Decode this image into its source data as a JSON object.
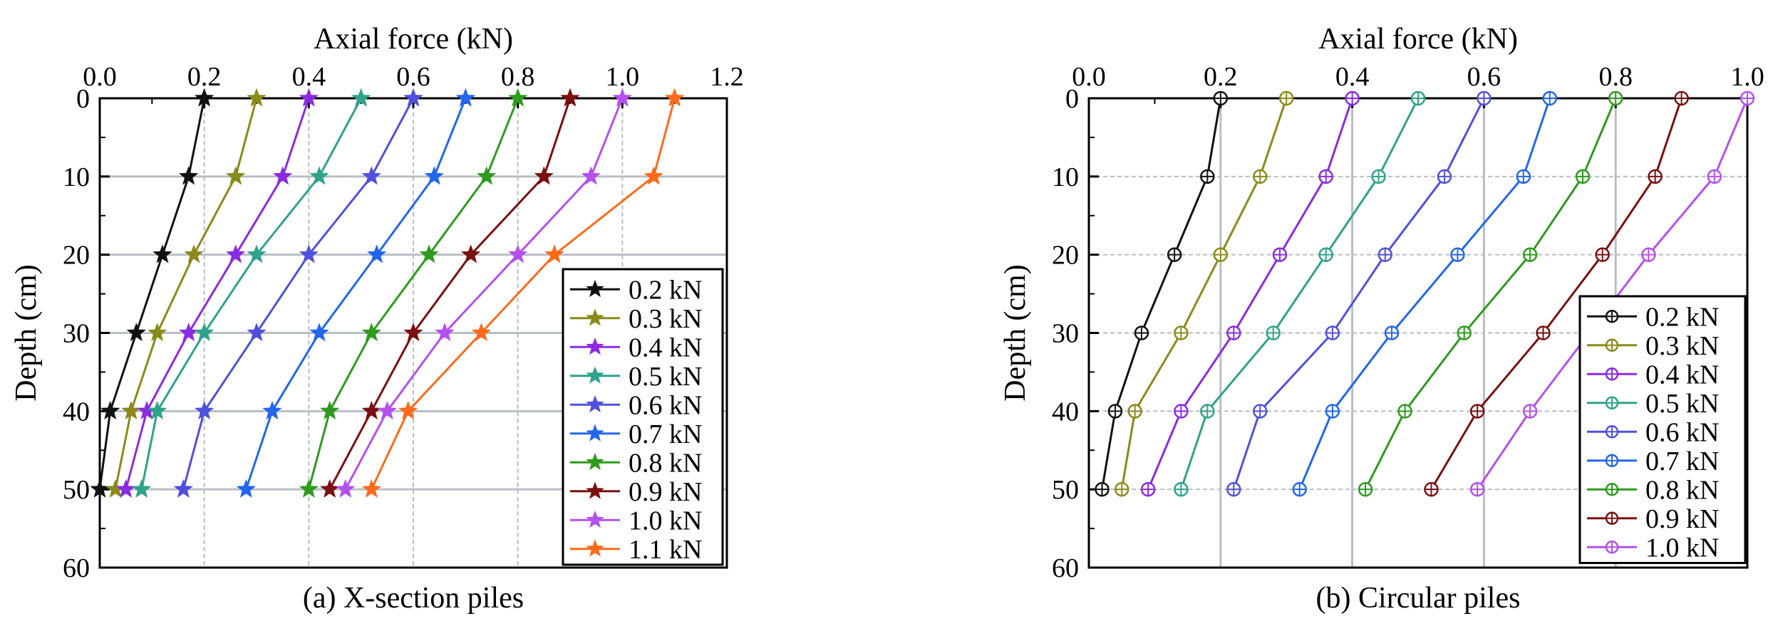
{
  "chart_data": [
    {
      "type": "line",
      "panel_caption": "(a) X-section piles",
      "xlabel": "Axial force (kN)",
      "ylabel": "Depth (cm)",
      "xlim": [
        0,
        1.2
      ],
      "ylim": [
        0,
        60
      ],
      "x_ticks": [
        "0.0",
        "0.2",
        "0.4",
        "0.6",
        "0.8",
        "1.0",
        "1.2"
      ],
      "y_ticks": [
        "0",
        "10",
        "20",
        "30",
        "40",
        "50",
        "60"
      ],
      "y_inverted": true,
      "grid": "vertical dashed at 0.2/0.4/0.6/0.8/1.0, horizontal solid at 10-50",
      "legend_position": "lower-right",
      "marker": "star",
      "depths": [
        0,
        10,
        20,
        30,
        40,
        50
      ],
      "series": [
        {
          "name": "0.2 kN",
          "color": "#111111",
          "values": [
            0.2,
            0.17,
            0.12,
            0.07,
            0.02,
            0.0
          ]
        },
        {
          "name": "0.3 kN",
          "color": "#8a8a1a",
          "values": [
            0.3,
            0.26,
            0.18,
            0.11,
            0.06,
            0.03
          ]
        },
        {
          "name": "0.4 kN",
          "color": "#8a2be2",
          "values": [
            0.4,
            0.35,
            0.26,
            0.17,
            0.09,
            0.05
          ]
        },
        {
          "name": "0.5 kN",
          "color": "#2ea28a",
          "values": [
            0.5,
            0.42,
            0.3,
            0.2,
            0.11,
            0.08
          ]
        },
        {
          "name": "0.6 kN",
          "color": "#5050dc",
          "values": [
            0.6,
            0.52,
            0.4,
            0.3,
            0.2,
            0.16
          ]
        },
        {
          "name": "0.7 kN",
          "color": "#2266ee",
          "values": [
            0.7,
            0.64,
            0.53,
            0.42,
            0.33,
            0.28
          ]
        },
        {
          "name": "0.8 kN",
          "color": "#2e9a1e",
          "values": [
            0.8,
            0.74,
            0.63,
            0.52,
            0.44,
            0.4
          ]
        },
        {
          "name": "0.9 kN",
          "color": "#7a1010",
          "values": [
            0.9,
            0.85,
            0.71,
            0.6,
            0.52,
            0.44
          ]
        },
        {
          "name": "1.0 kN",
          "color": "#b450f0",
          "values": [
            1.0,
            0.94,
            0.8,
            0.66,
            0.55,
            0.47
          ]
        },
        {
          "name": "1.1 kN",
          "color": "#ff6a1a",
          "values": [
            1.1,
            1.06,
            0.87,
            0.73,
            0.59,
            0.52
          ]
        }
      ]
    },
    {
      "type": "line",
      "panel_caption": "(b) Circular piles",
      "xlabel": "Axial force (kN)",
      "ylabel": "Depth (cm)",
      "xlim": [
        0,
        1.0
      ],
      "ylim": [
        0,
        60
      ],
      "x_ticks": [
        "0.0",
        "0.2",
        "0.4",
        "0.6",
        "0.8",
        "1.0"
      ],
      "y_ticks": [
        "0",
        "10",
        "20",
        "30",
        "40",
        "50",
        "60"
      ],
      "y_inverted": true,
      "grid": "vertical solid at 0.2/0.4/0.6/0.8, horizontal dashed at 10-50",
      "legend_position": "lower-right",
      "marker": "circle-plus",
      "depths": [
        0,
        10,
        20,
        30,
        40,
        50
      ],
      "series": [
        {
          "name": "0.2 kN",
          "color": "#111111",
          "values": [
            0.2,
            0.18,
            0.13,
            0.08,
            0.04,
            0.02
          ]
        },
        {
          "name": "0.3 kN",
          "color": "#8a8a1a",
          "values": [
            0.3,
            0.26,
            0.2,
            0.14,
            0.07,
            0.05
          ]
        },
        {
          "name": "0.4 kN",
          "color": "#8a2be2",
          "values": [
            0.4,
            0.36,
            0.29,
            0.22,
            0.14,
            0.09
          ]
        },
        {
          "name": "0.5 kN",
          "color": "#2ea28a",
          "values": [
            0.5,
            0.44,
            0.36,
            0.28,
            0.18,
            0.14
          ]
        },
        {
          "name": "0.6 kN",
          "color": "#5050dc",
          "values": [
            0.6,
            0.54,
            0.45,
            0.37,
            0.26,
            0.22
          ]
        },
        {
          "name": "0.7 kN",
          "color": "#2266ee",
          "values": [
            0.7,
            0.66,
            0.56,
            0.46,
            0.37,
            0.32
          ]
        },
        {
          "name": "0.8 kN",
          "color": "#2e9a1e",
          "values": [
            0.8,
            0.75,
            0.67,
            0.57,
            0.48,
            0.42
          ]
        },
        {
          "name": "0.9 kN",
          "color": "#7a1010",
          "values": [
            0.9,
            0.86,
            0.78,
            0.69,
            0.59,
            0.52
          ]
        },
        {
          "name": "1.0 kN",
          "color": "#b450f0",
          "values": [
            1.0,
            0.95,
            0.85,
            0.76,
            0.67,
            0.59
          ]
        }
      ]
    }
  ]
}
